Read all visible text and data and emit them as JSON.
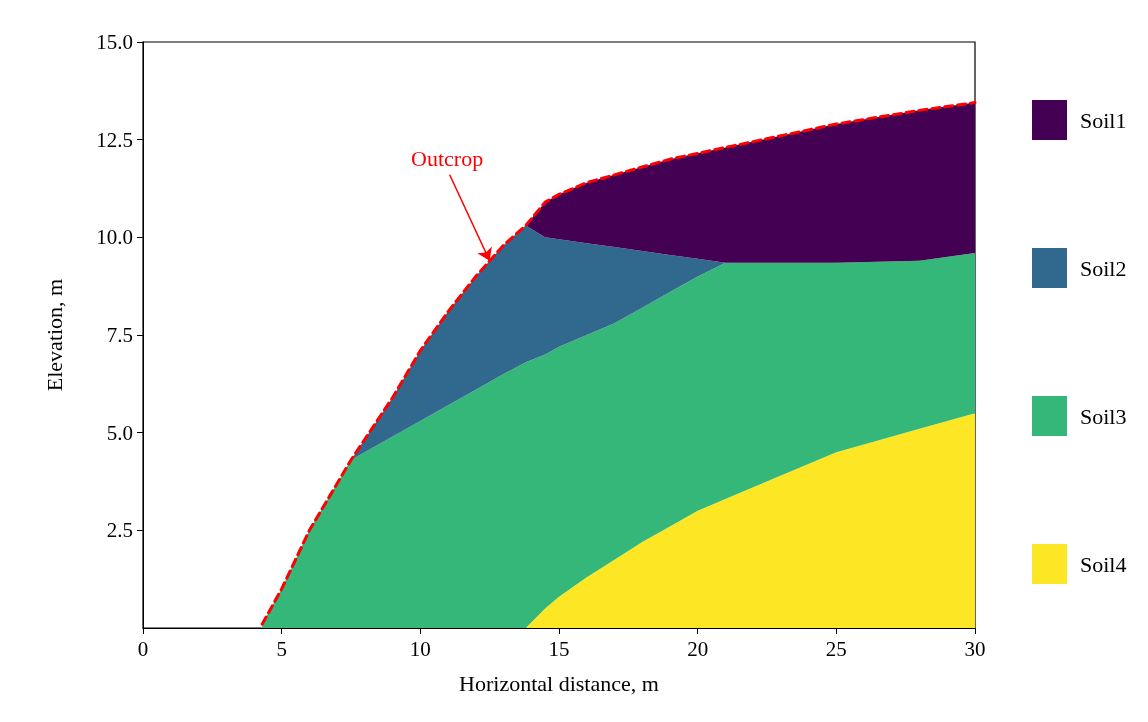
{
  "chart_data": {
    "type": "area",
    "stacked": true,
    "xlabel": "Horizontal distance, m",
    "ylabel": "Elevation, m",
    "x": [
      4.3,
      5,
      6,
      7.5,
      9,
      10,
      11,
      12,
      13,
      13.8,
      14.5,
      15,
      16,
      17,
      18,
      19,
      20,
      21,
      22,
      25,
      28,
      30
    ],
    "series": [
      {
        "name": "Soil4",
        "color": "#fde725",
        "values": [
          null,
          null,
          null,
          null,
          null,
          null,
          null,
          null,
          null,
          0,
          0.5,
          0.8,
          1.3,
          1.75,
          2.2,
          2.6,
          3.0,
          3.3,
          3.6,
          4.5,
          5.1,
          5.5
        ]
      },
      {
        "name": "Soil3",
        "color": "#35b779",
        "values": [
          0.1,
          1.0,
          2.5,
          4.3,
          4.9,
          5.3,
          5.7,
          6.1,
          6.5,
          6.8,
          6.5,
          6.4,
          6.2,
          6.05,
          6.0,
          6.0,
          6.0,
          6.05,
          5.75,
          4.85,
          4.3,
          4.1
        ]
      },
      {
        "name": "Soil2",
        "color": "#31688e",
        "values": [
          null,
          null,
          null,
          0,
          1.0,
          1.8,
          2.4,
          2.9,
          3.3,
          3.5,
          3.0,
          2.75,
          2.35,
          1.95,
          1.45,
          0.95,
          0.45,
          0,
          null,
          null,
          null,
          null
        ]
      },
      {
        "name": "Soil1",
        "color": "#440154",
        "values": [
          null,
          null,
          null,
          null,
          null,
          null,
          null,
          null,
          null,
          0,
          0.9,
          1.15,
          1.55,
          1.85,
          2.15,
          2.45,
          2.7,
          2.95,
          3.1,
          3.55,
          3.85,
          3.85
        ]
      },
      {
        "type": "line",
        "color": "#ff0000",
        "line_style": "dashed",
        "x": [
          4.3,
          5,
          6,
          7.5,
          9,
          10,
          11,
          12,
          13,
          13.8,
          14.5,
          15,
          16,
          17,
          18,
          19,
          20,
          21,
          22,
          25,
          28,
          30
        ],
        "values": [
          0.1,
          1.0,
          2.5,
          4.3,
          5.9,
          7.1,
          8.1,
          9.0,
          9.8,
          10.3,
          10.9,
          11.1,
          11.4,
          11.6,
          11.8,
          12.0,
          12.15,
          12.3,
          12.45,
          12.9,
          13.25,
          13.45
        ]
      }
    ],
    "xlim": [
      0,
      30
    ],
    "xticks": [
      0,
      5,
      10,
      15,
      20,
      25,
      30
    ],
    "ylim": [
      0,
      15
    ],
    "yticks": [
      {
        "value": 2.5,
        "label": "2.5"
      },
      {
        "value": 5,
        "label": "5.0"
      },
      {
        "value": 7.5,
        "label": "7.5"
      },
      {
        "value": 10,
        "label": "10.0"
      },
      {
        "value": 12.5,
        "label": "12.5"
      },
      {
        "value": 15,
        "label": "15.0"
      }
    ],
    "grid": false,
    "legend": "right",
    "annotations": [
      {
        "text": "Outcrop",
        "x": 12.5,
        "y": 9.4
      }
    ]
  }
}
